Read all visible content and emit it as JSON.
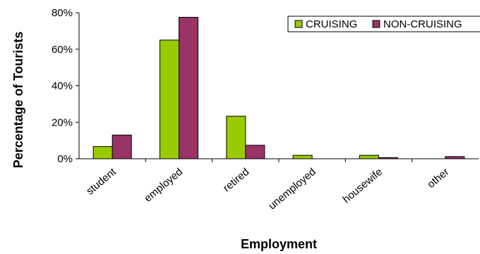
{
  "chart_data": {
    "type": "bar",
    "xlabel": "Employment",
    "ylabel": "Percentage of Tourists",
    "categories": [
      "student",
      "employed",
      "retired",
      "unemployed",
      "housewife",
      "other"
    ],
    "series": [
      {
        "name": "CRUISING",
        "color": "#99cc00",
        "values": [
          6.7,
          65.0,
          23.3,
          1.9,
          1.9,
          0.0
        ]
      },
      {
        "name": "NON-CRUISING",
        "color": "#993366",
        "values": [
          13.0,
          77.5,
          7.4,
          0.0,
          0.6,
          1.2
        ]
      }
    ],
    "ylim": [
      0,
      80
    ],
    "yticks": [
      "0%",
      "20%",
      "40%",
      "60%",
      "80%"
    ],
    "grid": false,
    "legend_position": "top-right"
  }
}
